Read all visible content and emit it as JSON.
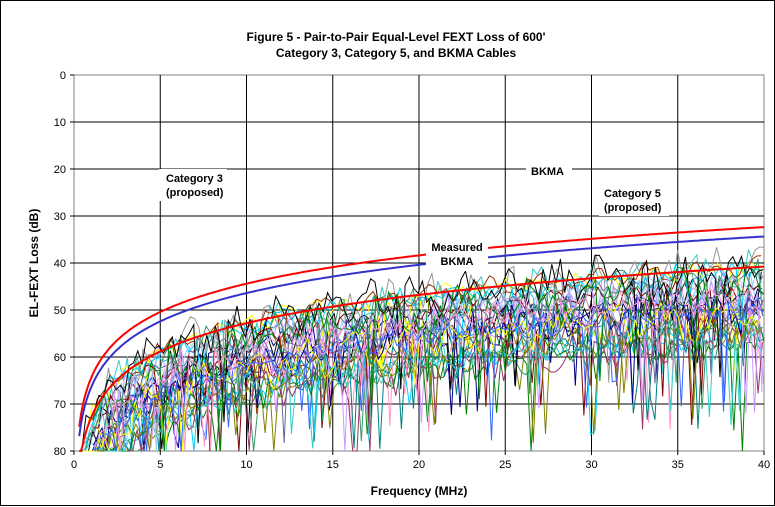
{
  "chart_data": {
    "type": "line",
    "title": "Figure 5 - Pair-to-Pair Equal-Level FEXT Loss of 600'",
    "subtitle": "Category 3, Category 5, and BKMA Cables",
    "xlabel": "Frequency (MHz)",
    "ylabel": "EL-FEXT Loss (dB)",
    "xlim": [
      0,
      40
    ],
    "ylim": [
      0,
      80
    ],
    "y_inverted": true,
    "x_ticks": [
      "0",
      "5",
      "10",
      "15",
      "20",
      "25",
      "30",
      "35",
      "40"
    ],
    "y_ticks": [
      "0",
      "10",
      "20",
      "30",
      "40",
      "50",
      "60",
      "70",
      "80"
    ],
    "grid": true,
    "series": [
      {
        "name": "Category 3 (proposed)",
        "color": "#ff0000",
        "x": [
          0.3,
          0.5,
          1,
          2,
          3,
          5,
          8,
          10,
          15,
          20,
          25,
          30,
          35,
          40
        ],
        "y": [
          74.8,
          70.4,
          64.4,
          58.4,
          54.9,
          50.4,
          46.3,
          44.4,
          40.9,
          38.4,
          36.4,
          34.8,
          33.5,
          32.4
        ]
      },
      {
        "name": "BKMA",
        "color": "#3333cc",
        "x": [
          0.3,
          0.5,
          1,
          2,
          3,
          5,
          8,
          10,
          15,
          20,
          25,
          30,
          35,
          40
        ],
        "y": [
          76.8,
          72.4,
          66.4,
          60.4,
          56.9,
          52.4,
          48.3,
          46.4,
          42.9,
          40.4,
          38.4,
          36.8,
          35.5,
          34.4
        ]
      },
      {
        "name": "Category 5 (proposed)",
        "color": "#ff0000",
        "x": [
          0.3,
          0.5,
          1,
          2,
          3,
          5,
          8,
          10,
          15,
          20,
          25,
          30,
          35,
          40
        ],
        "y": [
          80,
          78.8,
          72.8,
          66.8,
          63.3,
          58.8,
          54.7,
          52.8,
          49.3,
          46.8,
          44.8,
          43.2,
          41.9,
          40.8
        ]
      }
    ],
    "measured_series": {
      "name": "Measured BKMA",
      "count": 34,
      "colors": [
        "#800000",
        "#993366",
        "#000080",
        "#008080",
        "#00ccff",
        "#33cccc",
        "#99ccff",
        "#cc99ff",
        "#808000",
        "#339966",
        "#000000",
        "#666699",
        "#ffff00",
        "#3366ff",
        "#008000",
        "#ff99cc",
        "#969696",
        "#993300"
      ]
    },
    "annotations": [
      {
        "text": "Category 3",
        "color": "#ff0000"
      },
      {
        "text": "(proposed)",
        "color": "#ff0000"
      },
      {
        "text": "BKMA",
        "color": "#3333cc"
      },
      {
        "text": "Measured",
        "color": "#3333cc"
      },
      {
        "text": "BKMA",
        "color": "#3333cc"
      },
      {
        "text": "Category 5",
        "color": "#ff0000"
      },
      {
        "text": "(proposed)",
        "color": "#ff0000"
      }
    ]
  }
}
